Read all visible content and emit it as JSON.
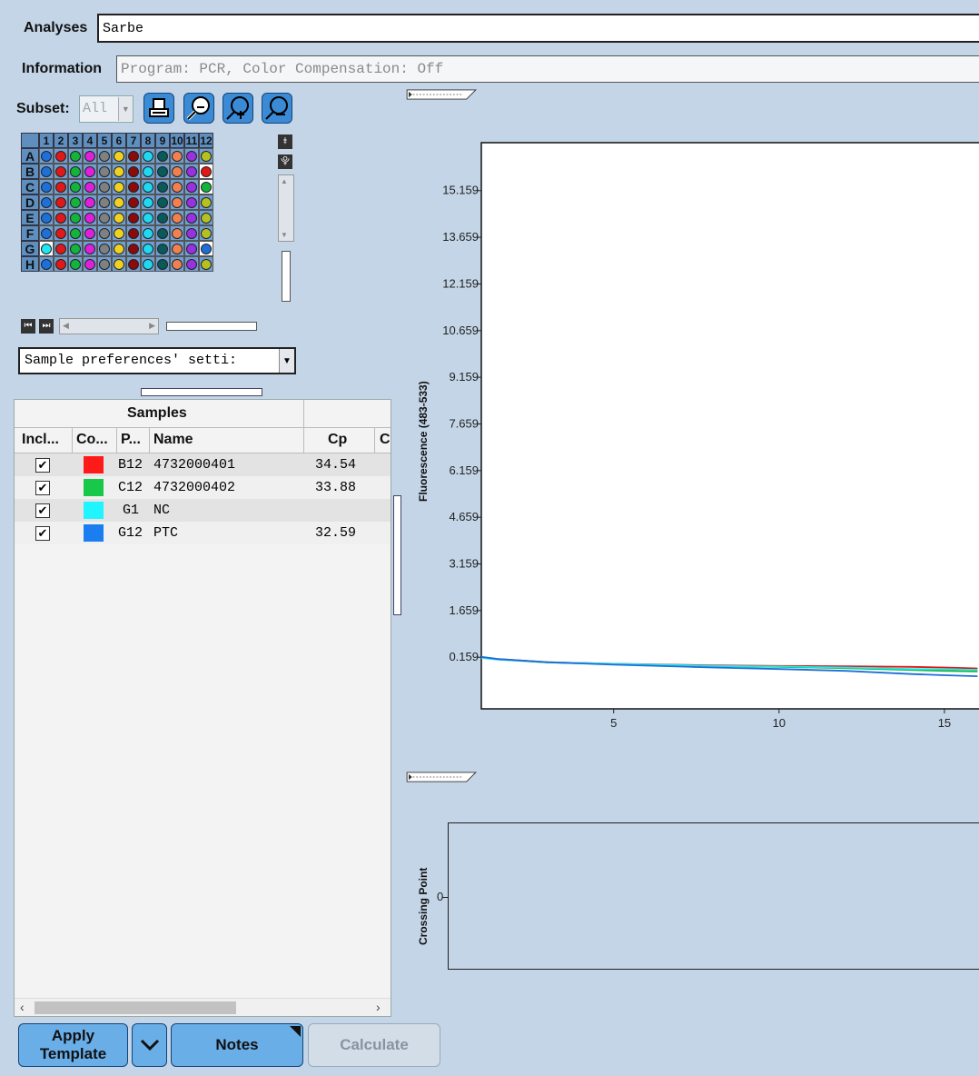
{
  "analyses": {
    "label": "Analyses",
    "value": "Sarbe"
  },
  "information": {
    "label": "Information",
    "value": "Program: PCR, Color Compensation: Off"
  },
  "subset": {
    "label": "Subset:",
    "value": "All"
  },
  "plate": {
    "columns": [
      "1",
      "2",
      "3",
      "4",
      "5",
      "6",
      "7",
      "8",
      "9",
      "10",
      "11",
      "12"
    ],
    "rows": [
      "A",
      "B",
      "C",
      "D",
      "E",
      "F",
      "G",
      "H"
    ],
    "column_colors": [
      "#1e6fd8",
      "#e01818",
      "#14b43a",
      "#e020d8",
      "#808080",
      "#f0d020",
      "#8b0a0a",
      "#20d8f0",
      "#0a5a5a",
      "#f08050",
      "#9a30e0",
      "#b8c020"
    ],
    "special_wells": {
      "B12": "#e01818",
      "C12": "#14b43a",
      "G1": "#20e8f0",
      "G12": "#1e6fd8"
    }
  },
  "preferences_dropdown": {
    "value": "Sample preferences' setti:"
  },
  "samples_table": {
    "group_header": "Samples",
    "columns": [
      "Incl...",
      "Co...",
      "P...",
      "Name",
      "Cp",
      "C"
    ],
    "rows": [
      {
        "included": true,
        "color": "#ff1a1a",
        "position": "B12",
        "name": "4732000401",
        "cp": "34.54"
      },
      {
        "included": true,
        "color": "#18c848",
        "position": "C12",
        "name": "4732000402",
        "cp": "33.88"
      },
      {
        "included": true,
        "color": "#20f4ff",
        "position": "G1",
        "name": "NC",
        "cp": ""
      },
      {
        "included": true,
        "color": "#1a7ef0",
        "position": "G12",
        "name": "PTC",
        "cp": "32.59"
      }
    ]
  },
  "buttons": {
    "apply_template": "Apply Template",
    "notes": "Notes",
    "calculate": "Calculate"
  },
  "chart_data": [
    {
      "type": "line",
      "ylabel": "Fluorescence (483-533)",
      "xlabel": "",
      "y_ticks": [
        "15.159",
        "13.659",
        "12.159",
        "10.659",
        "9.159",
        "7.659",
        "6.159",
        "4.659",
        "3.159",
        "1.659",
        "0.159"
      ],
      "x_ticks": [
        "5",
        "10",
        "15"
      ],
      "xlim": [
        1,
        16.1
      ],
      "ylim": [
        -1.5,
        16.7
      ],
      "series": [
        {
          "color": "#e01818",
          "x": [
            1,
            1.5,
            3,
            5,
            8,
            10,
            12,
            14,
            15,
            16
          ],
          "y": [
            0.16,
            0.1,
            0.0,
            -0.05,
            -0.1,
            -0.12,
            -0.13,
            -0.15,
            -0.17,
            -0.2
          ]
        },
        {
          "color": "#14b43a",
          "x": [
            1,
            1.5,
            3,
            5,
            8,
            10,
            12,
            14,
            15,
            16
          ],
          "y": [
            0.15,
            0.09,
            -0.01,
            -0.06,
            -0.12,
            -0.15,
            -0.19,
            -0.25,
            -0.28,
            -0.3
          ]
        },
        {
          "color": "#20e8f0",
          "x": [
            1,
            1.5,
            3,
            5,
            8,
            10,
            12,
            14,
            15,
            16
          ],
          "y": [
            0.14,
            0.08,
            0.0,
            -0.05,
            -0.12,
            -0.14,
            -0.17,
            -0.22,
            -0.23,
            -0.25
          ]
        },
        {
          "color": "#1e6fd8",
          "x": [
            1,
            1.5,
            3,
            5,
            8,
            10,
            12,
            14,
            15,
            16
          ],
          "y": [
            0.17,
            0.1,
            0.0,
            -0.08,
            -0.17,
            -0.22,
            -0.28,
            -0.38,
            -0.42,
            -0.45
          ]
        }
      ]
    },
    {
      "type": "scatter",
      "ylabel": "Crossing Point",
      "y_ticks": [
        "0"
      ],
      "series": []
    }
  ]
}
